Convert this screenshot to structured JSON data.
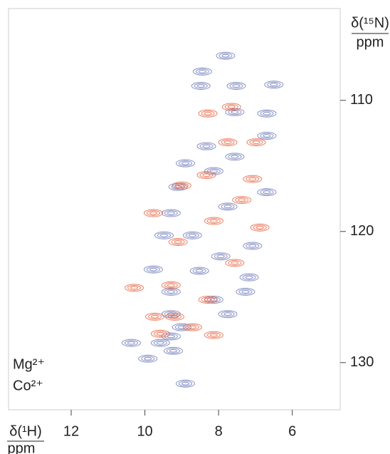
{
  "chart_data": {
    "type": "contour",
    "xlabel": "δ(¹H)",
    "xunit": "ppm",
    "ylabel": "δ(¹⁵N)",
    "yunit": "ppm",
    "xlim": [
      13.7,
      4.7
    ],
    "ylim": [
      103.0,
      133.6
    ],
    "xticks": [
      12,
      10,
      8,
      6
    ],
    "yticks": [
      110,
      120,
      130
    ],
    "series": [
      {
        "name": "Mg²⁺",
        "color": "#6b78b8",
        "x": [
          7.81,
          8.44,
          7.52,
          8.48,
          6.5,
          7.56,
          6.69,
          8.33,
          6.69,
          9.1,
          6.69,
          9.29,
          9.48,
          7.08,
          9.77,
          7.17,
          9.29,
          8.13,
          7.27,
          9.29,
          7.75,
          9.0,
          9.29,
          9.58,
          9.23,
          9.92,
          10.37,
          8.9,
          8.13,
          7.75,
          8.71,
          7.94,
          8.52,
          7.56,
          8.9
        ],
        "y": [
          106.6,
          107.8,
          108.9,
          108.9,
          108.8,
          110.9,
          111.0,
          113.5,
          112.7,
          116.6,
          117.0,
          118.6,
          120.3,
          121.1,
          122.9,
          123.5,
          124.6,
          125.2,
          124.6,
          126.3,
          126.3,
          127.3,
          128.0,
          128.5,
          129.1,
          129.7,
          128.5,
          131.6,
          115.4,
          118.1,
          120.3,
          121.9,
          123.0,
          114.3,
          114.8
        ]
      },
      {
        "name": "Co²⁺",
        "color": "#e8603c",
        "x": [
          8.29,
          7.65,
          7.75,
          6.98,
          9.0,
          8.33,
          7.37,
          9.77,
          6.88,
          8.13,
          9.1,
          7.56,
          9.29,
          8.29,
          9.19,
          8.71,
          9.58,
          8.13,
          10.29,
          9.73,
          7.08
        ],
        "y": [
          111.0,
          110.5,
          113.2,
          113.2,
          116.5,
          115.7,
          117.6,
          118.6,
          119.7,
          119.2,
          120.8,
          122.4,
          124.1,
          125.2,
          126.5,
          127.3,
          127.8,
          127.9,
          124.3,
          126.5,
          116.0
        ]
      }
    ]
  }
}
